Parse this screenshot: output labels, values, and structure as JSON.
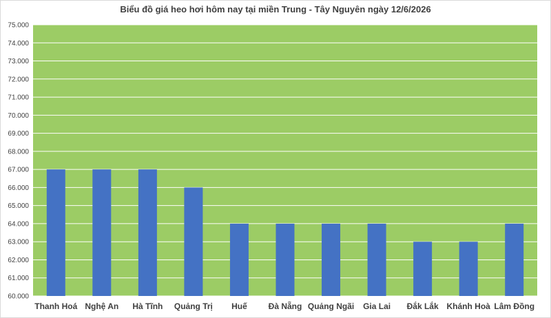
{
  "chart_data": {
    "type": "bar",
    "title": "Biểu đồ giá heo hơi hôm nay tại miền Trung - Tây Nguyên ngày 12/6/2026",
    "categories": [
      "Thanh Hoá",
      "Nghệ An",
      "Hà Tĩnh",
      "Quảng Trị",
      "Huế",
      "Đà Nẵng",
      "Quảng Ngãi",
      "Gia Lai",
      "Đắk Lắk",
      "Khánh Hoà",
      "Lâm Đồng"
    ],
    "values": [
      67000,
      67000,
      67000,
      66000,
      64000,
      64000,
      64000,
      64000,
      63000,
      63000,
      64000
    ],
    "ylim": [
      60000,
      75000
    ],
    "ytick_labels": [
      "60.000",
      "61.000",
      "62.000",
      "63.000",
      "64.000",
      "65.000",
      "66.000",
      "67.000",
      "68.000",
      "69.000",
      "70.000",
      "71.000",
      "72.000",
      "73.000",
      "74.000",
      "75.000"
    ],
    "xlabel": "",
    "ylabel": "",
    "grid": true,
    "legend": "none",
    "colors": {
      "bar": "#4472c4",
      "plot_background": "#9ccc65",
      "gridline": "#ffffff",
      "text": "#404040"
    }
  }
}
